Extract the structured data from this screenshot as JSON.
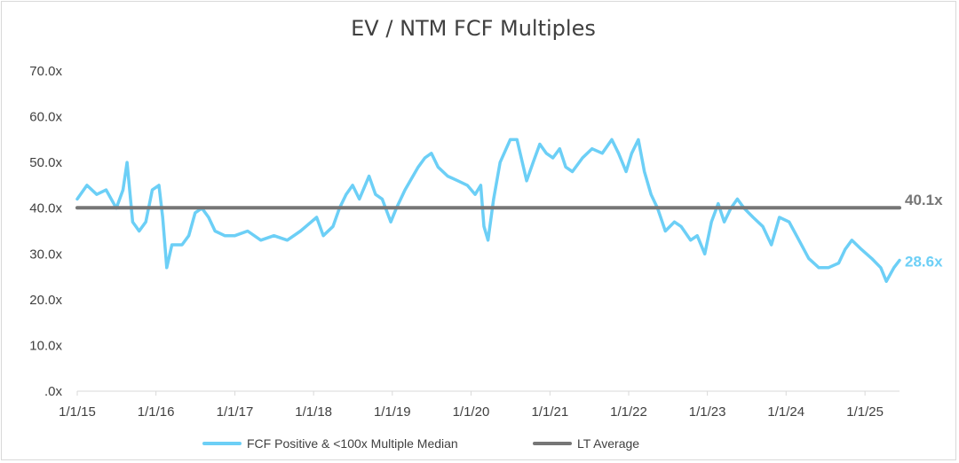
{
  "chart_data": {
    "type": "line",
    "title": "EV / NTM FCF Multiples",
    "xlabel": "",
    "ylabel": "",
    "ylim": [
      0,
      70
    ],
    "yticks": [
      ".0x",
      "10.0x",
      "20.0x",
      "30.0x",
      "40.0x",
      "50.0x",
      "60.0x",
      "70.0x"
    ],
    "xticks": [
      "1/1/15",
      "1/1/16",
      "1/1/17",
      "1/1/18",
      "1/1/19",
      "1/1/20",
      "1/1/21",
      "1/1/22",
      "1/1/23",
      "1/1/24",
      "1/1/25"
    ],
    "grid": false,
    "legend_placement": "bottom",
    "series": [
      {
        "name": "FCF Positive & <100x Multiple Median",
        "color": "#6ccff6",
        "end_label": "28.6x",
        "points": [
          [
            "2015-01-01",
            42
          ],
          [
            "2015-02-15",
            45
          ],
          [
            "2015-04-01",
            43
          ],
          [
            "2015-05-15",
            44
          ],
          [
            "2015-07-01",
            40
          ],
          [
            "2015-08-01",
            44
          ],
          [
            "2015-08-20",
            50
          ],
          [
            "2015-09-15",
            37
          ],
          [
            "2015-10-15",
            35
          ],
          [
            "2015-11-15",
            37
          ],
          [
            "2015-12-15",
            44
          ],
          [
            "2016-01-15",
            45
          ],
          [
            "2016-02-01",
            38
          ],
          [
            "2016-02-20",
            27
          ],
          [
            "2016-03-15",
            32
          ],
          [
            "2016-05-01",
            32
          ],
          [
            "2016-06-01",
            34
          ],
          [
            "2016-07-01",
            39
          ],
          [
            "2016-08-01",
            40
          ],
          [
            "2016-09-01",
            38
          ],
          [
            "2016-10-01",
            35
          ],
          [
            "2016-11-15",
            34
          ],
          [
            "2017-01-01",
            34
          ],
          [
            "2017-03-01",
            35
          ],
          [
            "2017-05-01",
            33
          ],
          [
            "2017-07-01",
            34
          ],
          [
            "2017-09-01",
            33
          ],
          [
            "2017-11-01",
            35
          ],
          [
            "2018-01-15",
            38
          ],
          [
            "2018-02-15",
            34
          ],
          [
            "2018-04-01",
            36
          ],
          [
            "2018-05-01",
            40
          ],
          [
            "2018-06-01",
            43
          ],
          [
            "2018-07-01",
            45
          ],
          [
            "2018-08-01",
            42
          ],
          [
            "2018-09-15",
            47
          ],
          [
            "2018-10-15",
            43
          ],
          [
            "2018-11-15",
            42
          ],
          [
            "2018-12-25",
            37
          ],
          [
            "2019-01-20",
            40
          ],
          [
            "2019-03-01",
            44
          ],
          [
            "2019-05-01",
            49
          ],
          [
            "2019-06-01",
            51
          ],
          [
            "2019-07-01",
            52
          ],
          [
            "2019-08-01",
            49
          ],
          [
            "2019-09-15",
            47
          ],
          [
            "2019-11-01",
            46
          ],
          [
            "2019-12-15",
            45
          ],
          [
            "2020-01-20",
            43
          ],
          [
            "2020-02-15",
            45
          ],
          [
            "2020-03-01",
            36
          ],
          [
            "2020-03-20",
            33
          ],
          [
            "2020-04-15",
            42
          ],
          [
            "2020-05-15",
            50
          ],
          [
            "2020-07-01",
            55
          ],
          [
            "2020-08-01",
            55
          ],
          [
            "2020-09-15",
            46
          ],
          [
            "2020-10-15",
            50
          ],
          [
            "2020-11-15",
            54
          ],
          [
            "2020-12-15",
            52
          ],
          [
            "2021-01-15",
            51
          ],
          [
            "2021-02-15",
            53
          ],
          [
            "2021-03-15",
            49
          ],
          [
            "2021-04-15",
            48
          ],
          [
            "2021-06-01",
            51
          ],
          [
            "2021-07-15",
            53
          ],
          [
            "2021-09-01",
            52
          ],
          [
            "2021-10-15",
            55
          ],
          [
            "2021-11-15",
            52
          ],
          [
            "2021-12-20",
            48
          ],
          [
            "2022-01-15",
            52
          ],
          [
            "2022-02-15",
            55
          ],
          [
            "2022-03-15",
            48
          ],
          [
            "2022-04-15",
            43
          ],
          [
            "2022-05-15",
            40
          ],
          [
            "2022-06-20",
            35
          ],
          [
            "2022-08-01",
            37
          ],
          [
            "2022-09-01",
            36
          ],
          [
            "2022-10-15",
            33
          ],
          [
            "2022-11-15",
            34
          ],
          [
            "2022-12-20",
            30
          ],
          [
            "2023-01-20",
            37
          ],
          [
            "2023-02-20",
            41
          ],
          [
            "2023-03-20",
            37
          ],
          [
            "2023-04-20",
            40
          ],
          [
            "2023-05-20",
            42
          ],
          [
            "2023-06-20",
            40
          ],
          [
            "2023-08-01",
            38
          ],
          [
            "2023-09-15",
            36
          ],
          [
            "2023-10-25",
            32
          ],
          [
            "2023-12-01",
            38
          ],
          [
            "2024-01-15",
            37
          ],
          [
            "2024-03-01",
            33
          ],
          [
            "2024-04-15",
            29
          ],
          [
            "2024-06-01",
            27
          ],
          [
            "2024-07-15",
            27
          ],
          [
            "2024-09-01",
            28
          ],
          [
            "2024-10-01",
            31
          ],
          [
            "2024-11-01",
            33
          ],
          [
            "2024-12-15",
            31
          ],
          [
            "2025-02-01",
            29
          ],
          [
            "2025-03-15",
            27
          ],
          [
            "2025-04-10",
            24
          ],
          [
            "2025-05-15",
            27
          ],
          [
            "2025-06-10",
            28.6
          ]
        ]
      },
      {
        "name": "LT Average",
        "color": "#767676",
        "end_label": "40.1x",
        "points": [
          [
            "2015-01-01",
            40.1
          ],
          [
            "2025-06-10",
            40.1
          ]
        ]
      }
    ]
  }
}
